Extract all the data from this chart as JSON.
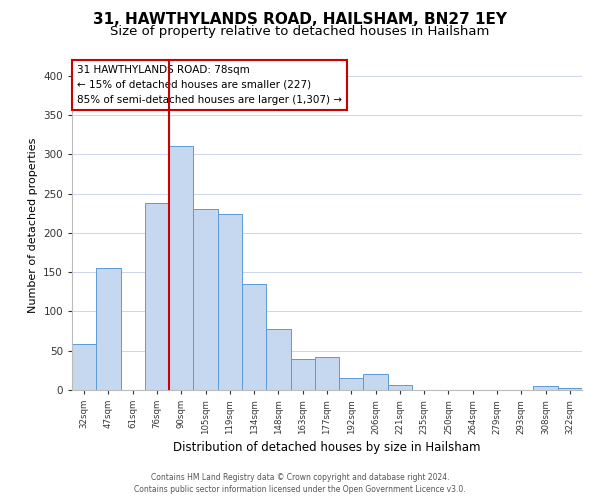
{
  "title": "31, HAWTHYLANDS ROAD, HAILSHAM, BN27 1EY",
  "subtitle": "Size of property relative to detached houses in Hailsham",
  "xlabel": "Distribution of detached houses by size in Hailsham",
  "ylabel": "Number of detached properties",
  "bar_labels": [
    "32sqm",
    "47sqm",
    "61sqm",
    "76sqm",
    "90sqm",
    "105sqm",
    "119sqm",
    "134sqm",
    "148sqm",
    "163sqm",
    "177sqm",
    "192sqm",
    "206sqm",
    "221sqm",
    "235sqm",
    "250sqm",
    "264sqm",
    "279sqm",
    "293sqm",
    "308sqm",
    "322sqm"
  ],
  "bar_values": [
    58,
    155,
    0,
    238,
    310,
    230,
    224,
    135,
    78,
    40,
    42,
    15,
    20,
    7,
    0,
    0,
    0,
    0,
    0,
    5,
    3
  ],
  "bar_color": "#c5d8f0",
  "bar_edge_color": "#5b9bd5",
  "vline_color": "#cc0000",
  "annotation_title": "31 HAWTHYLANDS ROAD: 78sqm",
  "annotation_line1": "← 15% of detached houses are smaller (227)",
  "annotation_line2": "85% of semi-detached houses are larger (1,307) →",
  "annotation_box_color": "#ffffff",
  "annotation_box_edge": "#cc0000",
  "ylim": [
    0,
    420
  ],
  "yticks": [
    0,
    50,
    100,
    150,
    200,
    250,
    300,
    350,
    400
  ],
  "footer1": "Contains HM Land Registry data © Crown copyright and database right 2024.",
  "footer2": "Contains public sector information licensed under the Open Government Licence v3.0.",
  "title_fontsize": 11,
  "subtitle_fontsize": 9.5,
  "bg_color": "#ffffff",
  "grid_color": "#ccd6e8"
}
